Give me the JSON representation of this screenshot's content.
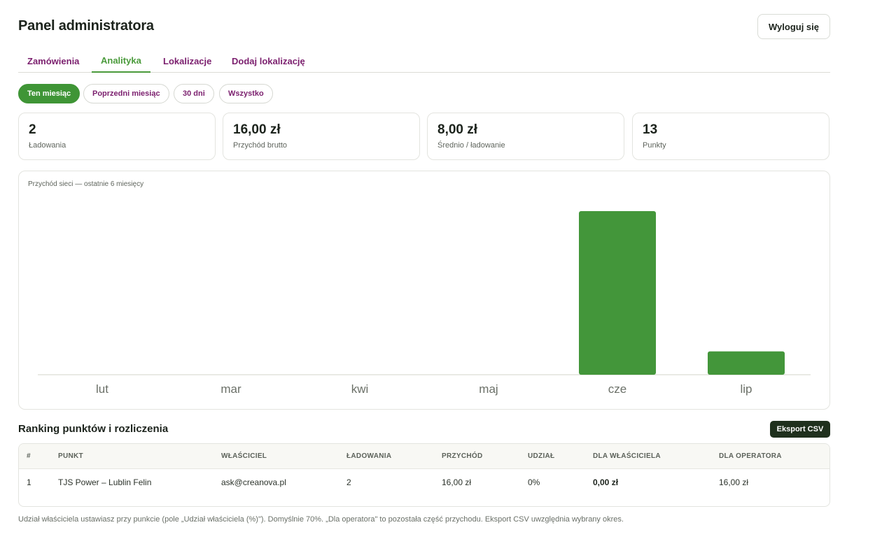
{
  "header": {
    "title": "Panel administratora",
    "logout_label": "Wyloguj się"
  },
  "tabs": [
    {
      "label": "Zamówienia",
      "active": false
    },
    {
      "label": "Analityka",
      "active": true
    },
    {
      "label": "Lokalizacje",
      "active": false
    },
    {
      "label": "Dodaj lokalizację",
      "active": false
    }
  ],
  "filters": [
    {
      "label": "Ten miesiąc",
      "active": true
    },
    {
      "label": "Poprzedni miesiąc",
      "active": false
    },
    {
      "label": "30 dni",
      "active": false
    },
    {
      "label": "Wszystko",
      "active": false
    }
  ],
  "stats": [
    {
      "value": "2",
      "label": "Ładowania"
    },
    {
      "value": "16,00 zł",
      "label": "Przychód brutto"
    },
    {
      "value": "8,00 zł",
      "label": "Średnio / ładowanie"
    },
    {
      "value": "13",
      "label": "Punkty"
    }
  ],
  "chart_data": {
    "type": "bar",
    "title": "Przychód sieci — ostatnie 6 miesięcy",
    "categories": [
      "lut",
      "mar",
      "kwi",
      "maj",
      "cze",
      "lip"
    ],
    "values": [
      0,
      0,
      0,
      0,
      112,
      16
    ],
    "xlabel": "",
    "ylabel": "",
    "grid": false,
    "bar_color": "#43963a"
  },
  "ranking": {
    "title": "Ranking punktów i rozliczenia",
    "export_label": "Eksport CSV",
    "columns": [
      "#",
      "PUNKT",
      "WŁAŚCICIEL",
      "ŁADOWANIA",
      "PRZYCHÓD",
      "UDZIAŁ",
      "DLA WŁAŚCICIELA",
      "DLA OPERATORA"
    ],
    "rows": [
      [
        "1",
        "TJS Power – Lublin Felin",
        "ask@creanova.pl",
        "2",
        "16,00 zł",
        "0%",
        "0,00 zł",
        "16,00 zł"
      ]
    ]
  },
  "footnote": "Udział właściciela ustawiasz przy punkcie (pole „Udział właściciela (%)\"). Domyślnie 70%. „Dla operatora\" to pozostała część przychodu. Eksport CSV uwzględnia wybrany okres.",
  "colors": {
    "accent_green": "#3f9536",
    "tab_purple": "#7b1f6e",
    "dark_button": "#1f301d"
  }
}
